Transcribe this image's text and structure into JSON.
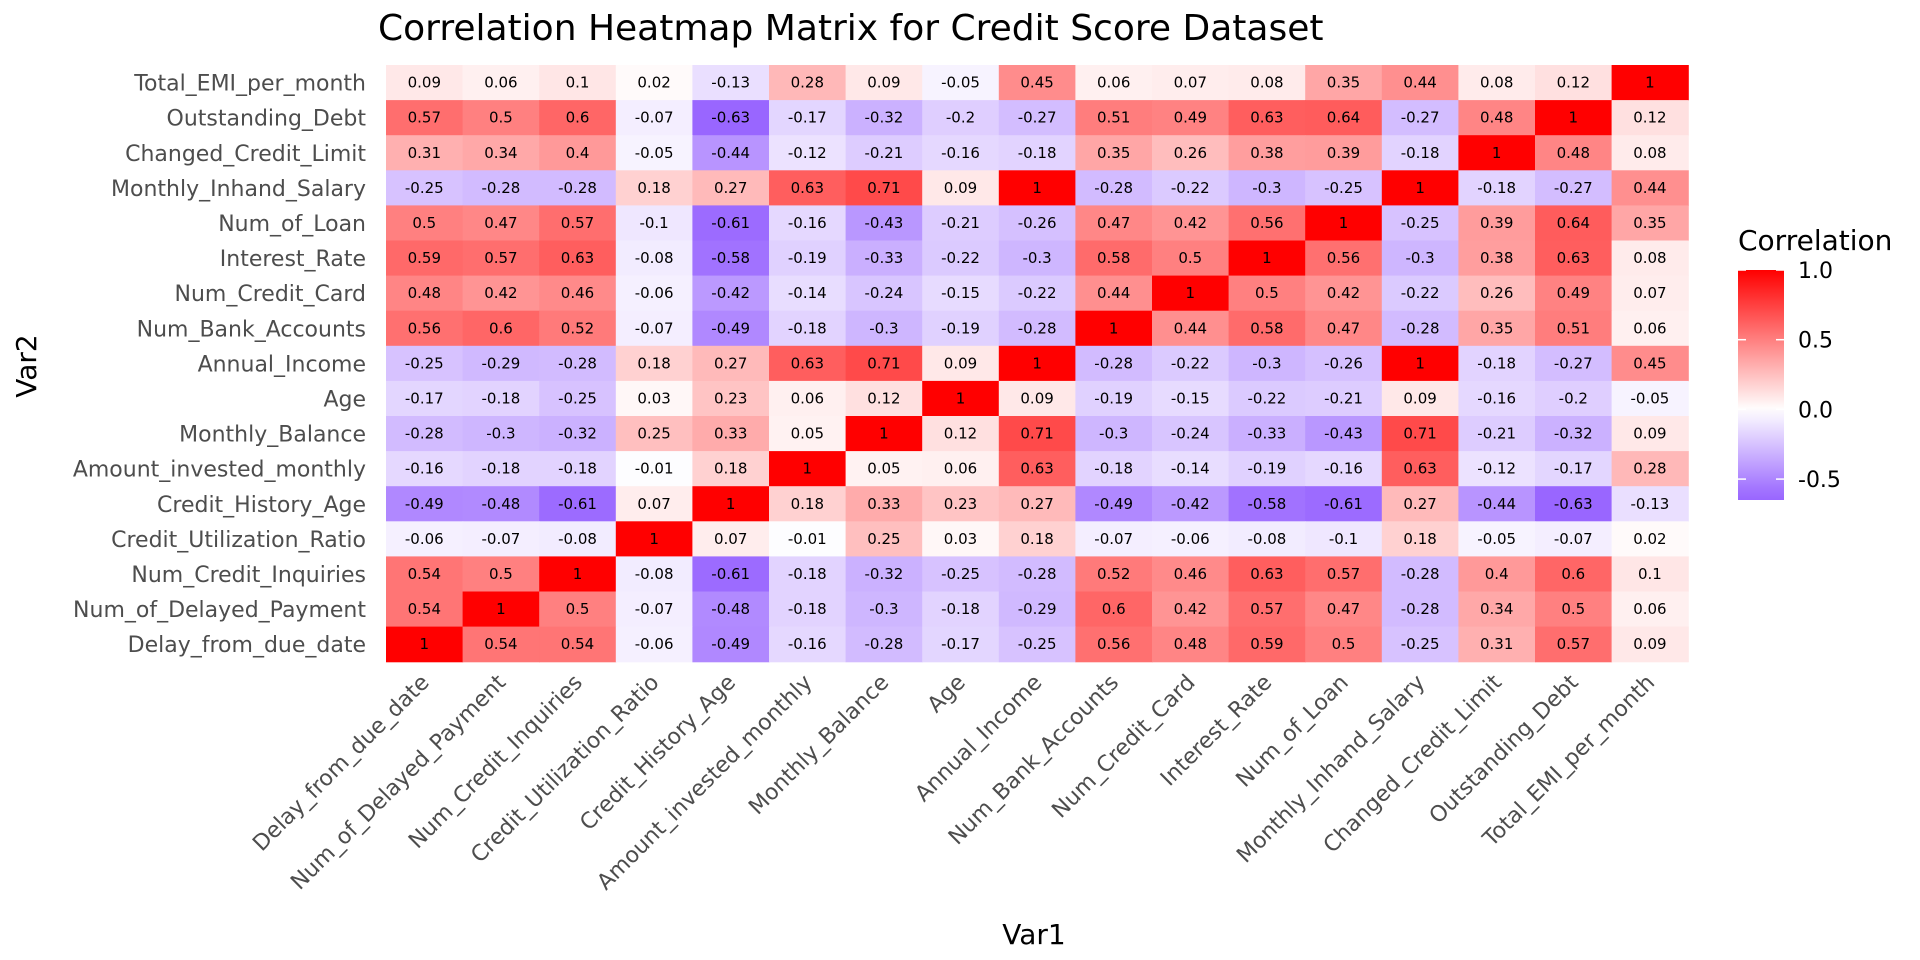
{
  "chart_data": {
    "type": "heatmap",
    "title": "Correlation Heatmap Matrix for Credit Score Dataset",
    "xlabel": "Var1",
    "ylabel": "Var2",
    "legend_title": "Correlation",
    "legend_placement": "right",
    "legend_ticks": [
      "1.0",
      "0.5",
      "0.0",
      "-0.5"
    ],
    "color_scale": {
      "low": "#9966ff",
      "mid": "#ffffff",
      "high": "#ff0000",
      "min": -0.63,
      "max": 1
    },
    "grid": false,
    "x_categories": [
      "Delay_from_due_date",
      "Num_of_Delayed_Payment",
      "Num_Credit_Inquiries",
      "Credit_Utilization_Ratio",
      "Credit_History_Age",
      "Amount_invested_monthly",
      "Monthly_Balance",
      "Age",
      "Annual_Income",
      "Num_Bank_Accounts",
      "Num_Credit_Card",
      "Interest_Rate",
      "Num_of_Loan",
      "Monthly_Inhand_Salary",
      "Changed_Credit_Limit",
      "Outstanding_Debt",
      "Total_EMI_per_month"
    ],
    "y_categories": [
      "Total_EMI_per_month",
      "Outstanding_Debt",
      "Changed_Credit_Limit",
      "Monthly_Inhand_Salary",
      "Num_of_Loan",
      "Interest_Rate",
      "Num_Credit_Card",
      "Num_Bank_Accounts",
      "Annual_Income",
      "Age",
      "Monthly_Balance",
      "Amount_invested_monthly",
      "Credit_History_Age",
      "Credit_Utilization_Ratio",
      "Num_Credit_Inquiries",
      "Num_of_Delayed_Payment",
      "Delay_from_due_date"
    ],
    "values": [
      [
        0.09,
        0.06,
        0.1,
        0.02,
        -0.13,
        0.28,
        0.09,
        -0.05,
        0.45,
        0.06,
        0.07,
        0.08,
        0.35,
        0.44,
        0.08,
        0.12,
        1
      ],
      [
        0.57,
        0.5,
        0.6,
        -0.07,
        -0.63,
        -0.17,
        -0.32,
        -0.2,
        -0.27,
        0.51,
        0.49,
        0.63,
        0.64,
        -0.27,
        0.48,
        1,
        0.12
      ],
      [
        0.31,
        0.34,
        0.4,
        -0.05,
        -0.44,
        -0.12,
        -0.21,
        -0.16,
        -0.18,
        0.35,
        0.26,
        0.38,
        0.39,
        -0.18,
        1,
        0.48,
        0.08
      ],
      [
        -0.25,
        -0.28,
        -0.28,
        0.18,
        0.27,
        0.63,
        0.71,
        0.09,
        1,
        -0.28,
        -0.22,
        -0.3,
        -0.25,
        1,
        -0.18,
        -0.27,
        0.44
      ],
      [
        0.5,
        0.47,
        0.57,
        -0.1,
        -0.61,
        -0.16,
        -0.43,
        -0.21,
        -0.26,
        0.47,
        0.42,
        0.56,
        1,
        -0.25,
        0.39,
        0.64,
        0.35
      ],
      [
        0.59,
        0.57,
        0.63,
        -0.08,
        -0.58,
        -0.19,
        -0.33,
        -0.22,
        -0.3,
        0.58,
        0.5,
        1,
        0.56,
        -0.3,
        0.38,
        0.63,
        0.08
      ],
      [
        0.48,
        0.42,
        0.46,
        -0.06,
        -0.42,
        -0.14,
        -0.24,
        -0.15,
        -0.22,
        0.44,
        1,
        0.5,
        0.42,
        -0.22,
        0.26,
        0.49,
        0.07
      ],
      [
        0.56,
        0.6,
        0.52,
        -0.07,
        -0.49,
        -0.18,
        -0.3,
        -0.19,
        -0.28,
        1,
        0.44,
        0.58,
        0.47,
        -0.28,
        0.35,
        0.51,
        0.06
      ],
      [
        -0.25,
        -0.29,
        -0.28,
        0.18,
        0.27,
        0.63,
        0.71,
        0.09,
        1,
        -0.28,
        -0.22,
        -0.3,
        -0.26,
        1,
        -0.18,
        -0.27,
        0.45
      ],
      [
        -0.17,
        -0.18,
        -0.25,
        0.03,
        0.23,
        0.06,
        0.12,
        1,
        0.09,
        -0.19,
        -0.15,
        -0.22,
        -0.21,
        0.09,
        -0.16,
        -0.2,
        -0.05
      ],
      [
        -0.28,
        -0.3,
        -0.32,
        0.25,
        0.33,
        0.05,
        1,
        0.12,
        0.71,
        -0.3,
        -0.24,
        -0.33,
        -0.43,
        0.71,
        -0.21,
        -0.32,
        0.09
      ],
      [
        -0.16,
        -0.18,
        -0.18,
        -0.01,
        0.18,
        1,
        0.05,
        0.06,
        0.63,
        -0.18,
        -0.14,
        -0.19,
        -0.16,
        0.63,
        -0.12,
        -0.17,
        0.28
      ],
      [
        -0.49,
        -0.48,
        -0.61,
        0.07,
        1,
        0.18,
        0.33,
        0.23,
        0.27,
        -0.49,
        -0.42,
        -0.58,
        -0.61,
        0.27,
        -0.44,
        -0.63,
        -0.13
      ],
      [
        -0.06,
        -0.07,
        -0.08,
        1,
        0.07,
        -0.01,
        0.25,
        0.03,
        0.18,
        -0.07,
        -0.06,
        -0.08,
        -0.1,
        0.18,
        -0.05,
        -0.07,
        0.02
      ],
      [
        0.54,
        0.5,
        1,
        -0.08,
        -0.61,
        -0.18,
        -0.32,
        -0.25,
        -0.28,
        0.52,
        0.46,
        0.63,
        0.57,
        -0.28,
        0.4,
        0.6,
        0.1
      ],
      [
        0.54,
        1,
        0.5,
        -0.07,
        -0.48,
        -0.18,
        -0.3,
        -0.18,
        -0.29,
        0.6,
        0.42,
        0.57,
        0.47,
        -0.28,
        0.34,
        0.5,
        0.06
      ],
      [
        1,
        0.54,
        0.54,
        -0.06,
        -0.49,
        -0.16,
        -0.28,
        -0.17,
        -0.25,
        0.56,
        0.48,
        0.59,
        0.5,
        -0.25,
        0.31,
        0.57,
        0.09
      ]
    ]
  }
}
